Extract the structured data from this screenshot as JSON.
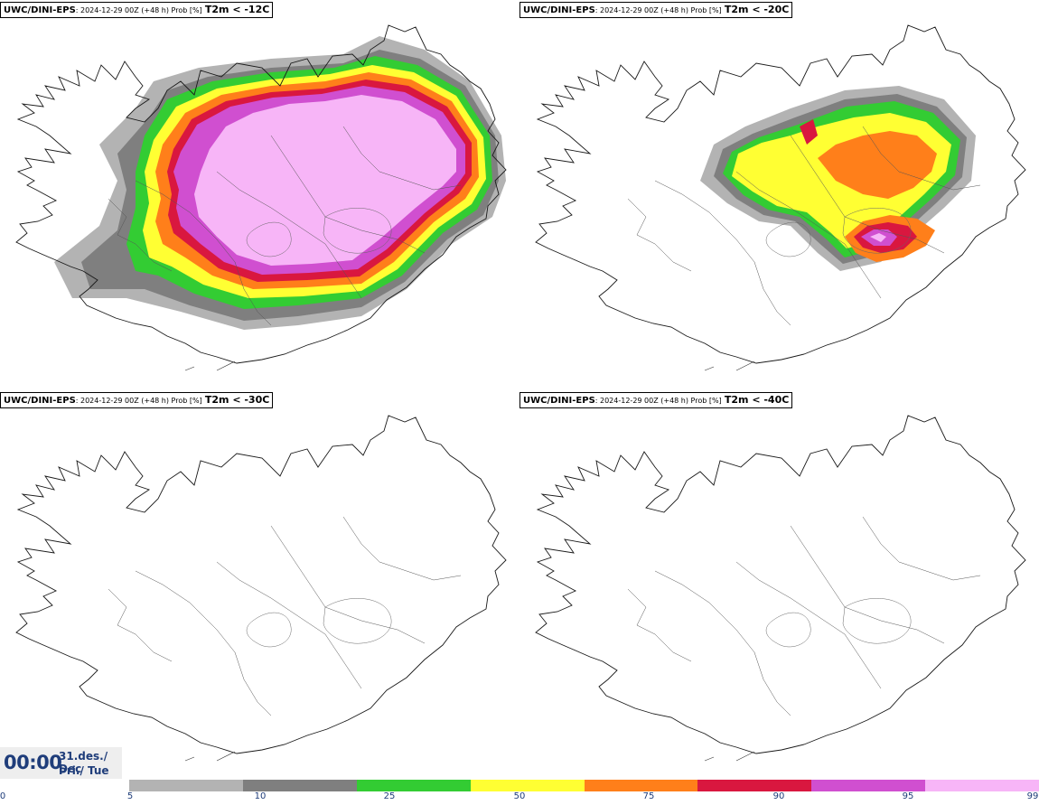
{
  "panels": [
    {
      "model": "UWC/DINI-EPS",
      "meta": ": 2024-12-29 00Z (+48 h) Prob [%]",
      "threshold": "T2m < -12C"
    },
    {
      "model": "UWC/DINI-EPS",
      "meta": ": 2024-12-29 00Z (+48 h) Prob [%]",
      "threshold": "T2m < -20C"
    },
    {
      "model": "UWC/DINI-EPS",
      "meta": ": 2024-12-29 00Z (+48 h) Prob [%]",
      "threshold": "T2m < -30C"
    },
    {
      "model": "UWC/DINI-EPS",
      "meta": ": 2024-12-29 00Z (+48 h) Prob [%]",
      "threshold": "T2m < -40C"
    }
  ],
  "valid_time": {
    "time": "00:00",
    "date_line1": "31.des./ Dec",
    "date_line2": "Þri./ Tue"
  },
  "legend": {
    "ticks": [
      "0",
      "5",
      "10",
      "25",
      "50",
      "75",
      "90",
      "95",
      "99"
    ],
    "colors": [
      "#b3b3b3",
      "#7f7f7f",
      "#33cc33",
      "#ffff33",
      "#ff7f1a",
      "#d9173f",
      "#d04fd0",
      "#f7b5f7"
    ]
  },
  "map_colors": {
    "c5_10": "#b3b3b3",
    "c10_25": "#7f7f7f",
    "c25_50": "#33cc33",
    "c50_75": "#ffff33",
    "c75_90": "#ff7f1a",
    "c90_95": "#d9173f",
    "c95_99": "#d04fd0",
    "c99": "#f7b5f7"
  }
}
